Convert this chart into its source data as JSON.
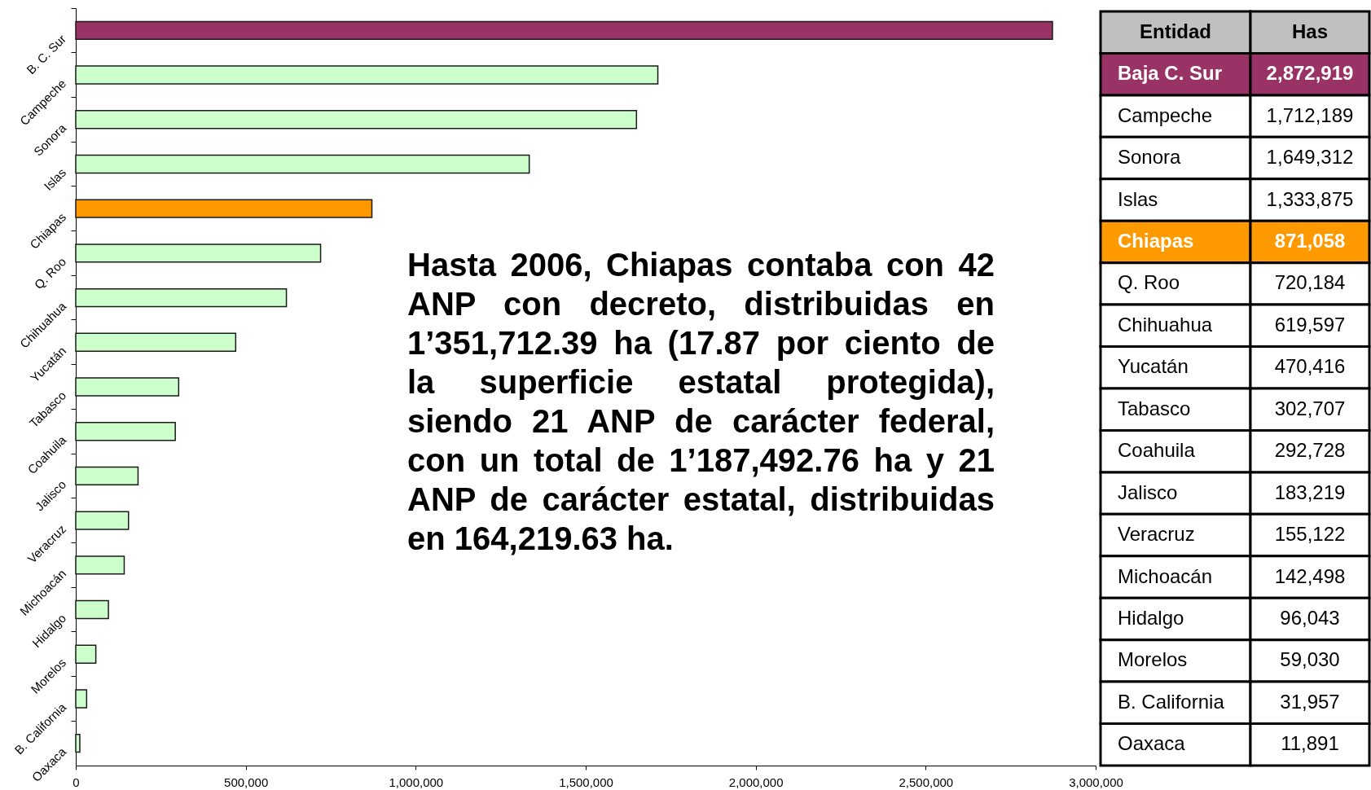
{
  "chart_data": [
    {
      "type": "bar",
      "orientation": "horizontal",
      "categories": [
        "B. C. Sur",
        "Campeche",
        "Sonora",
        "Islas",
        "Chiapas",
        "Q. Roo",
        "Chihuahua",
        "Yucatán",
        "Tabasco",
        "Coahuila",
        "Jalisco",
        "Veracruz",
        "Michoacán",
        "Hidalgo",
        "Morelos",
        "B. California",
        "Oaxaca"
      ],
      "values": [
        2872919,
        1712189,
        1649312,
        1333875,
        871058,
        720184,
        619597,
        470416,
        302707,
        292728,
        183219,
        155122,
        142498,
        96043,
        59030,
        31957,
        11891
      ],
      "colors": [
        "#993366",
        "#ccffcc",
        "#ccffcc",
        "#ccffcc",
        "#ff9900",
        "#ccffcc",
        "#ccffcc",
        "#ccffcc",
        "#ccffcc",
        "#ccffcc",
        "#ccffcc",
        "#ccffcc",
        "#ccffcc",
        "#ccffcc",
        "#ccffcc",
        "#ccffcc",
        "#ccffcc"
      ],
      "xlim": [
        0,
        3000000
      ],
      "xticks": [
        0,
        {
          "value": 500000,
          "label": "500,000"
        },
        {
          "value": 1000000,
          "label": "1,000,000"
        },
        {
          "value": 1500000,
          "label": "1,500,000"
        },
        {
          "value": 2000000,
          "label": "2,000,000"
        },
        {
          "value": 2500000,
          "label": "2,500,000"
        },
        {
          "value": 3000000,
          "label": "3,000,000"
        }
      ],
      "annotations": [
        "Hasta 2006, Chiapas contaba con 42 ANP con decreto, distribuidas en 1’351,712.39 ha (17.87 por ciento de la superficie estatal protegida), siendo 21 ANP de carácter federal, con un total de 1’187,492.76 ha y 21 ANP de carácter estatal, distribuidas en 164,219.63 ha."
      ]
    },
    {
      "type": "other",
      "xlabel": "Entidad",
      "ylabel": "Has",
      "categories": [
        "Baja C. Sur",
        "Campeche",
        "Sonora",
        "Islas",
        "Chiapas",
        "Q. Roo",
        "Chihuahua",
        "Yucatán",
        "Tabasco",
        "Coahuila",
        "Jalisco",
        "Veracruz",
        "Michoacán",
        "Hidalgo",
        "Morelos",
        "B. California",
        "Oaxaca"
      ],
      "value_labels": [
        "2,872,919",
        "1,712,189",
        "1,649,312",
        "1,333,875",
        "871,058",
        "720,184",
        "619,597",
        "470,416",
        "302,707",
        "292,728",
        "183,219",
        "155,122",
        "142,498",
        "96,043",
        "59,030",
        "31,957",
        "11,891"
      ],
      "colors": [
        "#993366",
        "#ffffff",
        "#ffffff",
        "#ffffff",
        "#ff9900",
        "#ffffff",
        "#ffffff",
        "#ffffff",
        "#ffffff",
        "#ffffff",
        "#ffffff",
        "#ffffff",
        "#ffffff",
        "#ffffff",
        "#ffffff",
        "#ffffff",
        "#ffffff"
      ]
    }
  ]
}
